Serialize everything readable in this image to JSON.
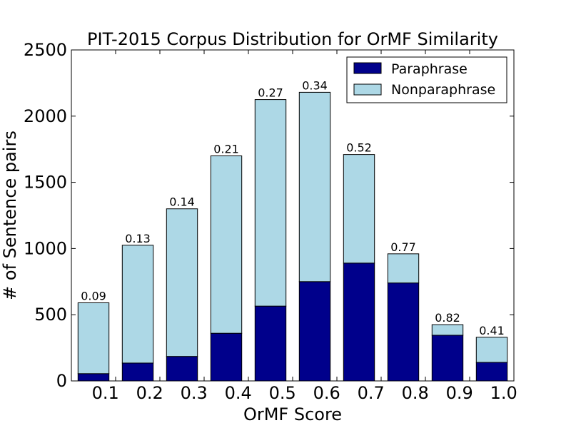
{
  "chart_data": {
    "type": "bar",
    "stacked": true,
    "title": "PIT-2015 Corpus Distribution for OrMF Similarity",
    "xlabel": "OrMF Score",
    "ylabel": "# of Sentence pairs",
    "categories": [
      "0.1",
      "0.2",
      "0.3",
      "0.4",
      "0.5",
      "0.6",
      "0.7",
      "0.8",
      "0.9",
      "1.0"
    ],
    "series": [
      {
        "name": "Paraphrase",
        "color": "#00008B",
        "values": [
          55,
          135,
          185,
          360,
          565,
          750,
          890,
          740,
          345,
          140
        ]
      },
      {
        "name": "Nonparaphrase",
        "color": "#ADD8E6",
        "values": [
          535,
          890,
          1115,
          1340,
          1560,
          1430,
          820,
          220,
          80,
          190
        ]
      }
    ],
    "bar_labels": [
      "0.09",
      "0.13",
      "0.14",
      "0.21",
      "0.27",
      "0.34",
      "0.52",
      "0.77",
      "0.82",
      "0.41"
    ],
    "yticks": [
      "0",
      "500",
      "1000",
      "1500",
      "2000",
      "2500"
    ],
    "ylim": [
      0,
      2500
    ],
    "grid": false,
    "legend_position": "top-right"
  }
}
